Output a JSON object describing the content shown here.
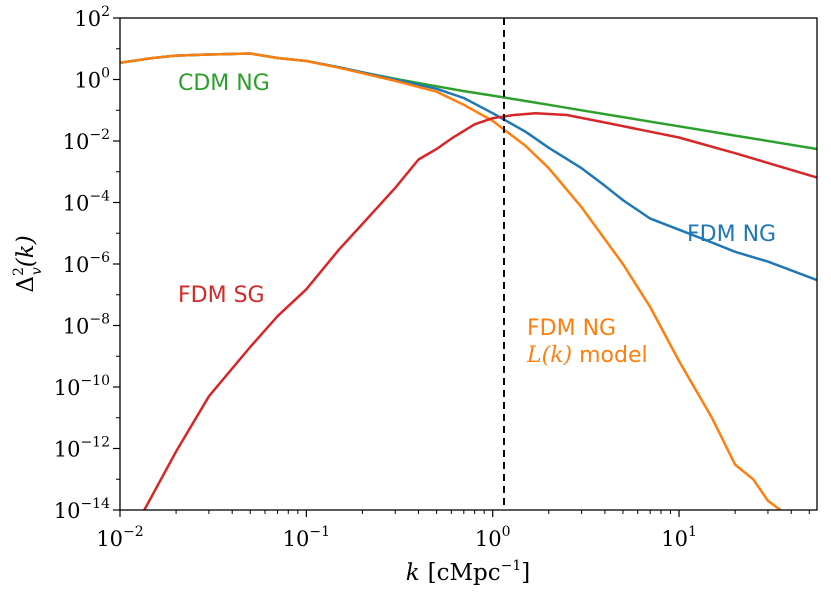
{
  "chart_data": {
    "type": "line",
    "xscale": "log",
    "yscale": "log",
    "xlim": [
      0.01,
      55
    ],
    "ylim": [
      1e-14,
      100
    ],
    "xticks": [
      {
        "value": 0.01,
        "base": "10",
        "exp": "−2"
      },
      {
        "value": 0.1,
        "base": "10",
        "exp": "−1"
      },
      {
        "value": 1,
        "base": "10",
        "exp": "0"
      },
      {
        "value": 10,
        "base": "10",
        "exp": "1"
      }
    ],
    "yticks": [
      {
        "value": 100,
        "base": "10",
        "exp": "2"
      },
      {
        "value": 1,
        "base": "10",
        "exp": "0"
      },
      {
        "value": 0.01,
        "base": "10",
        "exp": "−2"
      },
      {
        "value": 0.0001,
        "base": "10",
        "exp": "−4"
      },
      {
        "value": 1e-06,
        "base": "10",
        "exp": "−6"
      },
      {
        "value": 1e-08,
        "base": "10",
        "exp": "−8"
      },
      {
        "value": 1e-10,
        "base": "10",
        "exp": "−10"
      },
      {
        "value": 1e-12,
        "base": "10",
        "exp": "−12"
      },
      {
        "value": 1e-14,
        "base": "10",
        "exp": "−14"
      }
    ],
    "xlabel": {
      "var": "k",
      "units": "[cMpc",
      "exp": "−1",
      "close": "]"
    },
    "ylabel": {
      "sym": "Δ",
      "sup": "2",
      "sub": "v",
      "arg": "(k)"
    },
    "vline": {
      "x": 1.15,
      "style": "dashed",
      "color": "#000000"
    },
    "grid": false,
    "series": [
      {
        "color": "#2ca02c",
        "x": [
          0.01,
          0.015,
          0.02,
          0.03,
          0.05,
          0.07,
          0.1,
          0.15,
          0.2,
          0.3,
          0.5,
          0.7,
          1.0,
          1.5,
          2.0,
          3.0,
          5.0,
          10,
          20,
          55
        ],
        "y": [
          3.5,
          5.0,
          6.0,
          6.5,
          7.0,
          5.0,
          4.0,
          2.5,
          1.7,
          1.05,
          0.6,
          0.42,
          0.3,
          0.2,
          0.15,
          0.1,
          0.06,
          0.03,
          0.015,
          0.0055
        ]
      },
      {
        "color": "#1f77b4",
        "x": [
          0.01,
          0.015,
          0.02,
          0.03,
          0.05,
          0.07,
          0.1,
          0.15,
          0.2,
          0.3,
          0.5,
          0.7,
          1.0,
          1.5,
          2.0,
          3.0,
          4.0,
          5.0,
          7.0,
          10,
          15,
          20,
          30,
          55
        ],
        "y": [
          3.5,
          5.0,
          6.0,
          6.5,
          7.0,
          5.0,
          4.0,
          2.5,
          1.7,
          1.0,
          0.5,
          0.25,
          0.08,
          0.02,
          0.006,
          0.0013,
          0.00035,
          0.00012,
          3e-05,
          1.3e-05,
          5e-06,
          2.5e-06,
          1.2e-06,
          3e-07
        ]
      },
      {
        "color": "#ff7f0e",
        "x": [
          0.01,
          0.015,
          0.02,
          0.03,
          0.05,
          0.07,
          0.1,
          0.15,
          0.2,
          0.3,
          0.5,
          0.7,
          1.0,
          1.5,
          2.0,
          3.0,
          5.0,
          7.0,
          10,
          15,
          20,
          25,
          30,
          35
        ],
        "y": [
          3.5,
          5.0,
          6.0,
          6.5,
          7.0,
          5.0,
          4.0,
          2.4,
          1.6,
          0.9,
          0.4,
          0.15,
          0.045,
          0.007,
          0.0013,
          7e-05,
          1e-06,
          4e-08,
          7e-10,
          1e-11,
          3e-13,
          1e-13,
          2e-14,
          1e-14
        ]
      },
      {
        "color": "#d62728",
        "x": [
          0.0135,
          0.02,
          0.03,
          0.05,
          0.07,
          0.1,
          0.15,
          0.2,
          0.3,
          0.4,
          0.5,
          0.6,
          0.8,
          1.0,
          1.3,
          1.7,
          2.5,
          4.0,
          7.0,
          10,
          20,
          55
        ],
        "y": [
          1e-14,
          8e-13,
          5e-11,
          2e-09,
          2e-08,
          1.5e-07,
          3e-06,
          2e-05,
          0.0003,
          0.0025,
          0.0055,
          0.012,
          0.035,
          0.055,
          0.07,
          0.08,
          0.07,
          0.04,
          0.02,
          0.013,
          0.004,
          0.00065
        ]
      }
    ],
    "annotations": [
      {
        "text": "CDM NG",
        "color": "#2ca02c",
        "x": 0.02,
        "y": 1
      },
      {
        "text": "FDM NG",
        "color": "#1f77b4",
        "x": 10,
        "y": 1e-05
      },
      {
        "text": "FDM SG",
        "color": "#d62728",
        "x": 0.02,
        "y": 1e-07
      },
      {
        "text": "FDM NG",
        "color": "#ff7f0e",
        "x": 1.2,
        "y": 1e-08
      }
    ],
    "annotation_math": {
      "text": "L(k)",
      "suffix": " model",
      "color": "#ff7f0e",
      "x": 1.2,
      "y": 6e-10
    }
  }
}
